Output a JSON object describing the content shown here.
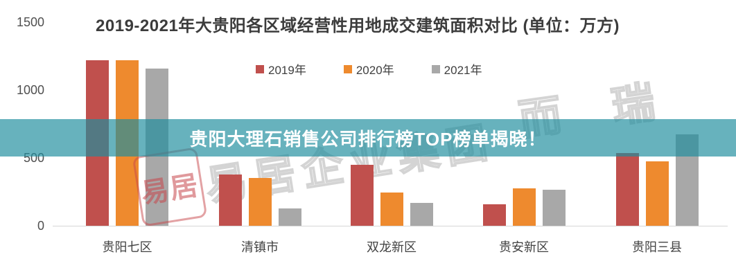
{
  "banner": {
    "text": "贵阳大理石销售公司排行榜TOP榜单揭晓！",
    "overlay_color": "#1f8e9d",
    "overlay_opacity": 0.68,
    "text_color": "#ffffff"
  },
  "watermarks": {
    "stamp_text": "易居",
    "middle_text": "易居企业集团",
    "right_text": "而 瑞"
  },
  "chart_data": {
    "type": "bar",
    "title": "2019-2021年大贵阳各区域经营性用地成交建筑面积对比 (单位：万方)",
    "unit": "万方",
    "categories": [
      "贵阳七区",
      "清镇市",
      "双龙新区",
      "贵安新区",
      "贵阳三县"
    ],
    "series": [
      {
        "name": "2019年",
        "color": "#c0504d",
        "values": [
          1220,
          375,
          450,
          160,
          535
        ]
      },
      {
        "name": "2020年",
        "color": "#ee8a2e",
        "values": [
          1220,
          350,
          245,
          275,
          475
        ]
      },
      {
        "name": "2021年",
        "color": "#a8a8a8",
        "values": [
          1160,
          125,
          170,
          265,
          675
        ]
      }
    ],
    "ylim": [
      0,
      1500
    ],
    "yticks": [
      0,
      500,
      1000,
      1500
    ],
    "legend_position": "top",
    "grid": false,
    "axis_color": "#d6d6d6",
    "tick_label_color": "#4f4f4f"
  }
}
